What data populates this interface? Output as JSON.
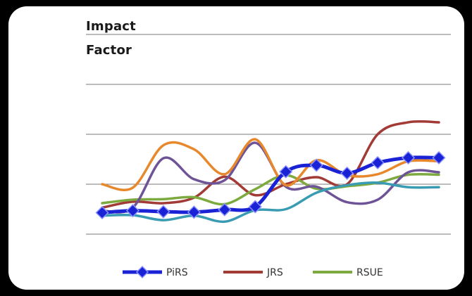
{
  "chart_data": {
    "type": "line",
    "title_lines": [
      "Impact",
      "Factor"
    ],
    "xlabel": "",
    "ylabel": "",
    "grid": "horizontal",
    "legend_position": "bottom",
    "legend_entries": [
      "PiRS",
      "JRS",
      "RSUE"
    ],
    "x": [
      1,
      2,
      3,
      4,
      5,
      6,
      7,
      8,
      9,
      10,
      11,
      12
    ],
    "ylim": [
      0,
      4
    ],
    "series": [
      {
        "name": "PiRS",
        "color": "#1a22d6",
        "marker": "diamond",
        "values": [
          0.43,
          0.47,
          0.45,
          0.44,
          0.49,
          0.55,
          1.25,
          1.38,
          1.22,
          1.43,
          1.53,
          1.53
        ]
      },
      {
        "name": "JRS",
        "color": "#a23a36",
        "values": [
          0.53,
          0.65,
          0.62,
          0.73,
          1.15,
          0.78,
          1.0,
          1.14,
          1.0,
          2.0,
          2.24,
          2.24
        ]
      },
      {
        "name": "RSUE",
        "color": "#7daa3e",
        "values": [
          0.62,
          0.69,
          0.7,
          0.74,
          0.6,
          0.9,
          1.18,
          0.91,
          0.96,
          1.03,
          1.19,
          1.19
        ]
      },
      {
        "color": "#6e5496",
        "values": [
          0.47,
          0.53,
          1.52,
          1.1,
          1.08,
          1.83,
          0.95,
          0.95,
          0.64,
          0.69,
          1.24,
          1.24
        ]
      },
      {
        "color": "#e8882c",
        "values": [
          1.0,
          0.93,
          1.78,
          1.7,
          1.2,
          1.9,
          0.98,
          1.48,
          1.18,
          1.2,
          1.46,
          1.46
        ]
      },
      {
        "color": "#3a9cb2",
        "values": [
          0.37,
          0.38,
          0.28,
          0.37,
          0.25,
          0.48,
          0.5,
          0.83,
          0.98,
          1.03,
          0.94,
          0.94
        ]
      }
    ]
  }
}
